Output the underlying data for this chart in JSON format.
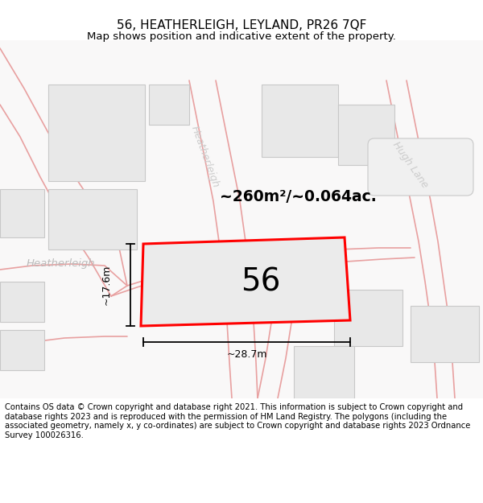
{
  "title_line1": "56, HEATHERLEIGH, LEYLAND, PR26 7QF",
  "title_line2": "Map shows position and indicative extent of the property.",
  "footer_text": "Contains OS data © Crown copyright and database right 2021. This information is subject to Crown copyright and database rights 2023 and is reproduced with the permission of HM Land Registry. The polygons (including the associated geometry, namely x, y co-ordinates) are subject to Crown copyright and database rights 2023 Ordnance Survey 100026316.",
  "background_color": "#ffffff",
  "map_bg": "#f9f8f8",
  "road_line_color": "#e8a0a0",
  "building_fill": "#e8e8e8",
  "building_edge": "#c8c8c8",
  "plot_fill": "#ebebeb",
  "red_outline": "#ff0000",
  "area_text": "~260m²/~0.064ac.",
  "number_text": "56",
  "dim_width": "~28.7m",
  "dim_height": "~17.6m",
  "title_fontsize": 11,
  "subtitle_fontsize": 9.5,
  "footer_fontsize": 7.2,
  "street_color_dark": "#bbbbbb",
  "street_color_light": "#cccccc"
}
